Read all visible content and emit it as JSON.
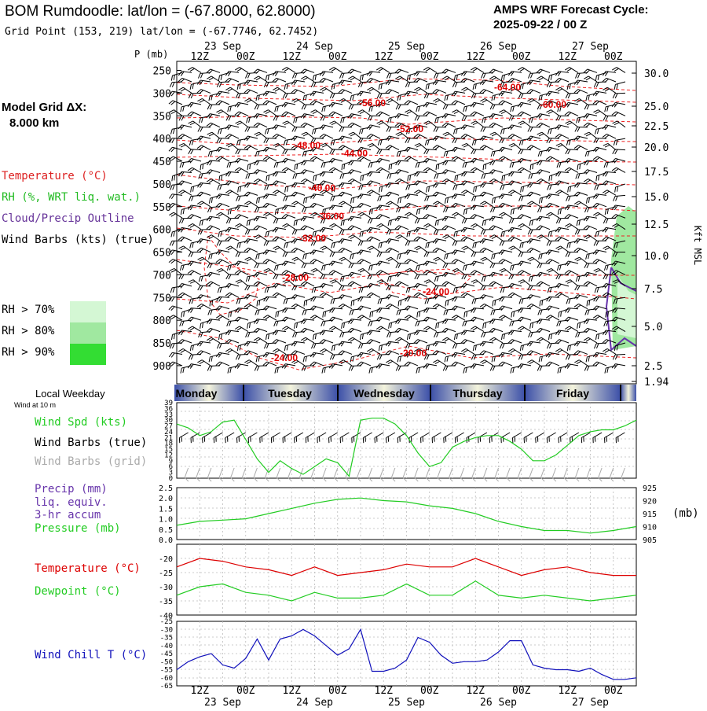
{
  "header": {
    "title": "BOM Rumdoodle:  lat/lon = (-67.8000, 62.8000)",
    "grid_point": "Grid Point (153, 219) lat/lon = (-67.7746, 62.7452)",
    "cycle_label": "AMPS WRF Forecast Cycle:",
    "cycle_value": "2025-09-22 / 00  Z",
    "model_grid_label": "Model Grid ΔX:",
    "model_grid_value": "8.000 km"
  },
  "legend": {
    "temperature": "Temperature (°C)",
    "rh": "RH (%, WRT liq. wat.)",
    "cloud": "Cloud/Precip Outline",
    "wind": "Wind Barbs (kts) (true)",
    "rh70": "RH > 70%",
    "rh80": "RH > 80%",
    "rh90": "RH > 90%",
    "colors": {
      "rh70": "#d4f7d4",
      "rh80": "#a0e8a0",
      "rh90": "#33dd33"
    }
  },
  "colors": {
    "temp": "#ee2222",
    "wind": "#000000",
    "cloud": "#6633aa",
    "green": "#22cc22",
    "blue": "#1111bb",
    "grey": "#aaaaaa",
    "red": "#dd0000"
  },
  "time_axis": {
    "hours": [
      "12Z",
      "00Z",
      "12Z",
      "00Z",
      "12Z",
      "00Z",
      "12Z",
      "00Z",
      "12Z",
      "00Z"
    ],
    "dates": [
      "23 Sep",
      "24 Sep",
      "25 Sep",
      "26 Sep",
      "27 Sep"
    ]
  },
  "weekday": {
    "label": "Local Weekday",
    "sublabel": "Wind at 10 m",
    "days": [
      "Monday",
      "Tuesday",
      "Wednesday",
      "Thursday",
      "Friday"
    ]
  },
  "chart_data": [
    {
      "type": "line",
      "name": "cross-section",
      "ylabel": "P (mb)",
      "yticks": [
        250,
        300,
        350,
        400,
        450,
        500,
        550,
        600,
        650,
        700,
        750,
        800,
        850,
        900
      ],
      "right_axis_label": "Kft MSL",
      "right_ticks": [
        "30.0",
        "25.0",
        "22.5",
        "20.0",
        "17.5",
        "15.0",
        "12.5",
        "10.0",
        "7.5",
        "5.0",
        "2.5",
        "1.94"
      ],
      "temperature_labels": [
        "-64.00",
        "-60.00",
        "-56.00",
        "-52.00",
        "-48.00",
        "-44.00",
        "-40.00",
        "-36.00",
        "-32.00",
        "-28.00",
        "-24.00",
        "-24.00",
        "-20.00"
      ]
    },
    {
      "type": "line",
      "name": "wind",
      "yticks": [
        0,
        3,
        6,
        9,
        12,
        15,
        18,
        21,
        24,
        27,
        30,
        33,
        36,
        39
      ],
      "labels": {
        "speed": "Wind Spd (kts)",
        "barbs_true": "Wind Barbs (true)",
        "barbs_grid": "Wind Barbs (grid)"
      },
      "ylim": [
        0,
        39
      ],
      "x_hours": [
        0,
        6,
        12,
        18,
        24,
        30,
        36,
        42,
        48,
        54,
        60,
        66,
        72,
        78,
        84,
        90,
        96,
        102,
        108,
        114,
        120,
        126,
        132,
        138,
        144,
        150,
        156,
        162,
        168,
        174,
        180,
        186,
        192,
        198,
        204,
        210,
        216,
        222,
        228,
        234,
        240
      ],
      "values": [
        28,
        26,
        22,
        24,
        29,
        30,
        20,
        10,
        3,
        9,
        5,
        2,
        6,
        10,
        8,
        1,
        30,
        31,
        31,
        28,
        22,
        13,
        6,
        8,
        16,
        19,
        21,
        22,
        22,
        19,
        15,
        9,
        9,
        12,
        17,
        22,
        24,
        25,
        25,
        27,
        30
      ]
    },
    {
      "type": "line",
      "name": "precip-pressure",
      "labels": {
        "precip": "Precip (mm)",
        "liq": "liq. equiv.",
        "accum": "3-hr accum",
        "pressure": "Pressure (mb)"
      },
      "yticks_left": [
        "0.0",
        "0.5",
        "1.0",
        "1.5",
        "2.0",
        "2.5"
      ],
      "yticks_right": [
        905,
        910,
        915,
        920,
        925
      ],
      "right_unit": "(mb)",
      "pressure_ylim": [
        905,
        925
      ],
      "x_hours": [
        0,
        12,
        24,
        36,
        48,
        60,
        72,
        84,
        96,
        108,
        120,
        132,
        144,
        156,
        168,
        180,
        192,
        204,
        216,
        228,
        240
      ],
      "pressure": [
        910.5,
        912,
        912.5,
        913,
        915,
        917,
        919,
        920.5,
        921,
        920,
        919.5,
        918,
        917,
        915,
        912,
        910,
        908.5,
        908.5,
        907.5,
        908.5,
        910
      ],
      "precip": [
        0,
        0,
        0,
        0,
        0,
        0,
        0,
        0,
        0,
        0,
        0,
        0,
        0,
        0,
        0,
        0,
        0,
        0,
        0,
        0,
        0
      ]
    },
    {
      "type": "line",
      "name": "temperature",
      "labels": {
        "temperature": "Temperature (°C)",
        "dewpoint": "Dewpoint (°C)"
      },
      "yticks": [
        -20,
        -25,
        -30,
        -35,
        -40
      ],
      "ylim": [
        -40,
        -15
      ],
      "x_hours": [
        0,
        12,
        24,
        36,
        48,
        60,
        72,
        84,
        96,
        108,
        120,
        132,
        144,
        156,
        168,
        180,
        192,
        204,
        216,
        228,
        240
      ],
      "temperature": [
        -23,
        -20,
        -21,
        -23,
        -24,
        -26,
        -23,
        -26,
        -25,
        -24,
        -22,
        -23,
        -23,
        -20,
        -23,
        -26,
        -24,
        -23,
        -25,
        -26,
        -26
      ],
      "dewpoint": [
        -33,
        -30,
        -29,
        -32,
        -33,
        -35,
        -32,
        -34,
        -34,
        -33,
        -29,
        -33,
        -33,
        -28,
        -33,
        -34,
        -33,
        -34,
        -35,
        -34,
        -33
      ]
    },
    {
      "type": "line",
      "name": "wind-chill",
      "labels": {
        "windchill": "Wind Chill T (°C)"
      },
      "yticks": [
        -25,
        -30,
        -35,
        -40,
        -45,
        -50,
        -55,
        -60,
        -65
      ],
      "ylim": [
        -65,
        -25
      ],
      "x_hours": [
        0,
        6,
        12,
        18,
        24,
        30,
        36,
        42,
        48,
        54,
        60,
        66,
        72,
        78,
        84,
        90,
        96,
        102,
        108,
        114,
        120,
        126,
        132,
        138,
        144,
        150,
        156,
        162,
        168,
        174,
        180,
        186,
        192,
        198,
        204,
        210,
        216,
        222,
        228,
        234,
        240
      ],
      "values": [
        -55,
        -50,
        -47,
        -45,
        -52,
        -54,
        -48,
        -36,
        -49,
        -36,
        -34,
        -30,
        -34,
        -40,
        -46,
        -42,
        -30,
        -56,
        -56,
        -54,
        -49,
        -35,
        -38,
        -46,
        -51,
        -50,
        -50,
        -49,
        -44,
        -37,
        -37,
        -52,
        -54,
        -55,
        -55,
        -56,
        -54,
        -58,
        -61,
        -61,
        -60
      ]
    }
  ]
}
